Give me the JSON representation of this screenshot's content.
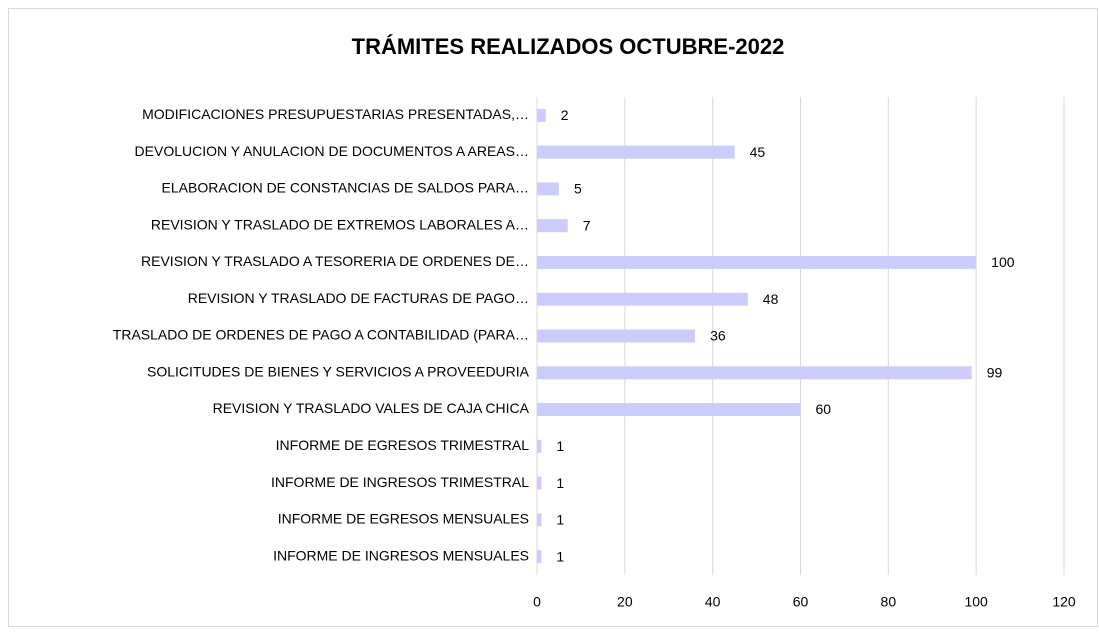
{
  "chart_data": {
    "type": "barh",
    "title": "TRÁMITES REALIZADOS OCTUBRE-2022",
    "categories": [
      "MODIFICACIONES PRESUPUESTARIAS PRESENTADAS,…",
      "DEVOLUCION Y ANULACION DE DOCUMENTOS A AREAS…",
      "ELABORACION DE CONSTANCIAS DE SALDOS PARA…",
      "REVISION Y TRASLADO DE EXTREMOS LABORALES  A…",
      "REVISION Y TRASLADO A TESORERIA DE ORDENES DE…",
      "REVISION Y TRASLADO DE FACTURAS DE PAGO…",
      "TRASLADO DE ORDENES DE PAGO A CONTABILIDAD (PARA…",
      "SOLICITUDES DE BIENES Y SERVICIOS A PROVEEDURIA",
      "REVISION Y TRASLADO VALES DE CAJA CHICA",
      "INFORME DE EGRESOS TRIMESTRAL",
      "INFORME DE INGRESOS TRIMESTRAL",
      "INFORME DE EGRESOS MENSUALES",
      "INFORME DE INGRESOS MENSUALES"
    ],
    "values": [
      2,
      45,
      5,
      7,
      100,
      48,
      36,
      99,
      60,
      1,
      1,
      1,
      1
    ],
    "color": "#ccccff",
    "xlim": [
      0,
      120
    ],
    "xticks": [
      0,
      20,
      40,
      60,
      80,
      100,
      120
    ],
    "grid": true
  }
}
